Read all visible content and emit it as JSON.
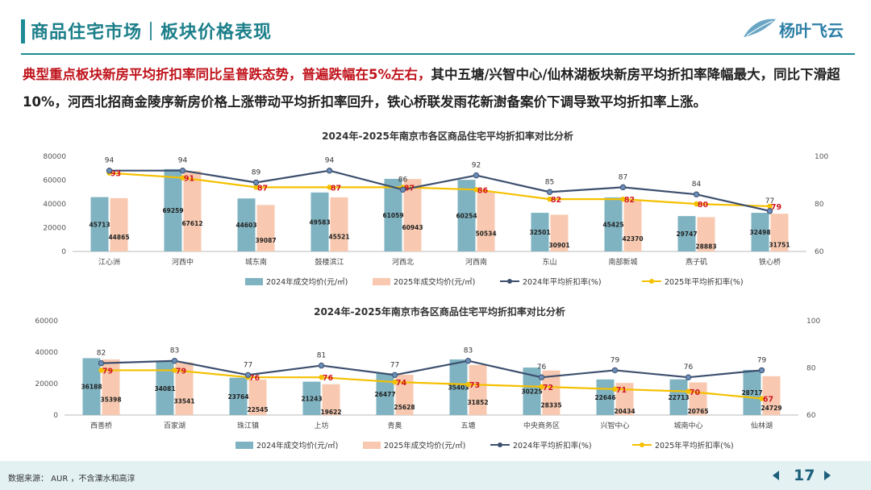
{
  "header": {
    "title": "商品住宅市场｜板块价格表现",
    "logo_text": "杨叶飞云"
  },
  "summary": {
    "highlight": "典型重点板块新房平均折扣率同比呈普跌态势，普遍跌幅在5%左右，",
    "rest": "其中五塘/兴智中心/仙林湖板块新房平均折扣率降幅最大，同比下滑超10%，河西北招商金陵序新房价格上涨带动平均折扣率回升，铁心桥联发雨花新澍备案价下调导致平均折扣率上涨。"
  },
  "footer": {
    "source": "数据来源： AUR ，不含溧水和高淳",
    "page": "17"
  },
  "colors": {
    "bar2024": "#7fb3c1",
    "bar2025": "#f8c9b0",
    "line2024": "#3d4f6e",
    "line2025": "#f5c000",
    "label2025": "#d0141c"
  },
  "chart_data": [
    {
      "type": "bar",
      "title": "2024年-2025年南京市各区商品住宅平均折扣率对比分析",
      "categories": [
        "江心洲",
        "河西中",
        "城东南",
        "鼓楼滨江",
        "河西北",
        "河西南",
        "东山",
        "南部新城",
        "燕子矶",
        "铁心桥"
      ],
      "y_left": {
        "min": 0,
        "max": 80000,
        "ticks": [
          "0",
          "20000",
          "40000",
          "60000",
          "80000"
        ]
      },
      "y_right": {
        "min": 60,
        "max": 100,
        "ticks": [
          "60",
          "80",
          "100"
        ]
      },
      "series": [
        {
          "name": "2024年成交均价(元/㎡)",
          "kind": "bar",
          "values": [
            45713,
            69259,
            44603,
            49583,
            61059,
            60254,
            32501,
            45425,
            29747,
            32498
          ]
        },
        {
          "name": "2025年成交均价(元/㎡)",
          "kind": "bar",
          "values": [
            44865,
            67612,
            39087,
            45521,
            60943,
            50534,
            30901,
            42370,
            28883,
            31751
          ]
        },
        {
          "name": "2024年平均折扣率(%)",
          "kind": "line",
          "values": [
            94,
            94,
            89,
            94,
            86,
            92,
            85,
            87,
            84,
            77
          ]
        },
        {
          "name": "2025年平均折扣率(%)",
          "kind": "line",
          "values": [
            93,
            91,
            87,
            87,
            87,
            86,
            82,
            82,
            80,
            79
          ]
        }
      ],
      "legend": "bottom"
    },
    {
      "type": "bar",
      "title": "2024年-2025年南京市各区商品住宅平均折扣率对比分析",
      "categories": [
        "西善桥",
        "百家湖",
        "珠江镇",
        "上坊",
        "青奥",
        "五塘",
        "中央商务区",
        "兴智中心",
        "城南中心",
        "仙林湖"
      ],
      "y_left": {
        "min": 0,
        "max": 60000,
        "ticks": [
          "0",
          "20000",
          "40000",
          "60000"
        ]
      },
      "y_right": {
        "min": 60,
        "max": 100,
        "ticks": [
          "60",
          "80",
          "100"
        ]
      },
      "series": [
        {
          "name": "2024年成交均价(元/㎡)",
          "kind": "bar",
          "values": [
            36188,
            34081,
            23764,
            21243,
            26477,
            35403,
            30225,
            22646,
            22713,
            28717
          ]
        },
        {
          "name": "2025年成交均价(元/㎡)",
          "kind": "bar",
          "values": [
            35398,
            33541,
            22545,
            19622,
            25628,
            31852,
            28335,
            20434,
            20765,
            24729
          ]
        },
        {
          "name": "2024年平均折扣率(%)",
          "kind": "line",
          "values": [
            82,
            83,
            77,
            81,
            77,
            83,
            76,
            79,
            76,
            79
          ]
        },
        {
          "name": "2025年平均折扣率(%)",
          "kind": "line",
          "values": [
            79,
            79,
            76,
            76,
            74,
            73,
            72,
            71,
            70,
            67
          ]
        }
      ],
      "legend": "bottom"
    }
  ]
}
